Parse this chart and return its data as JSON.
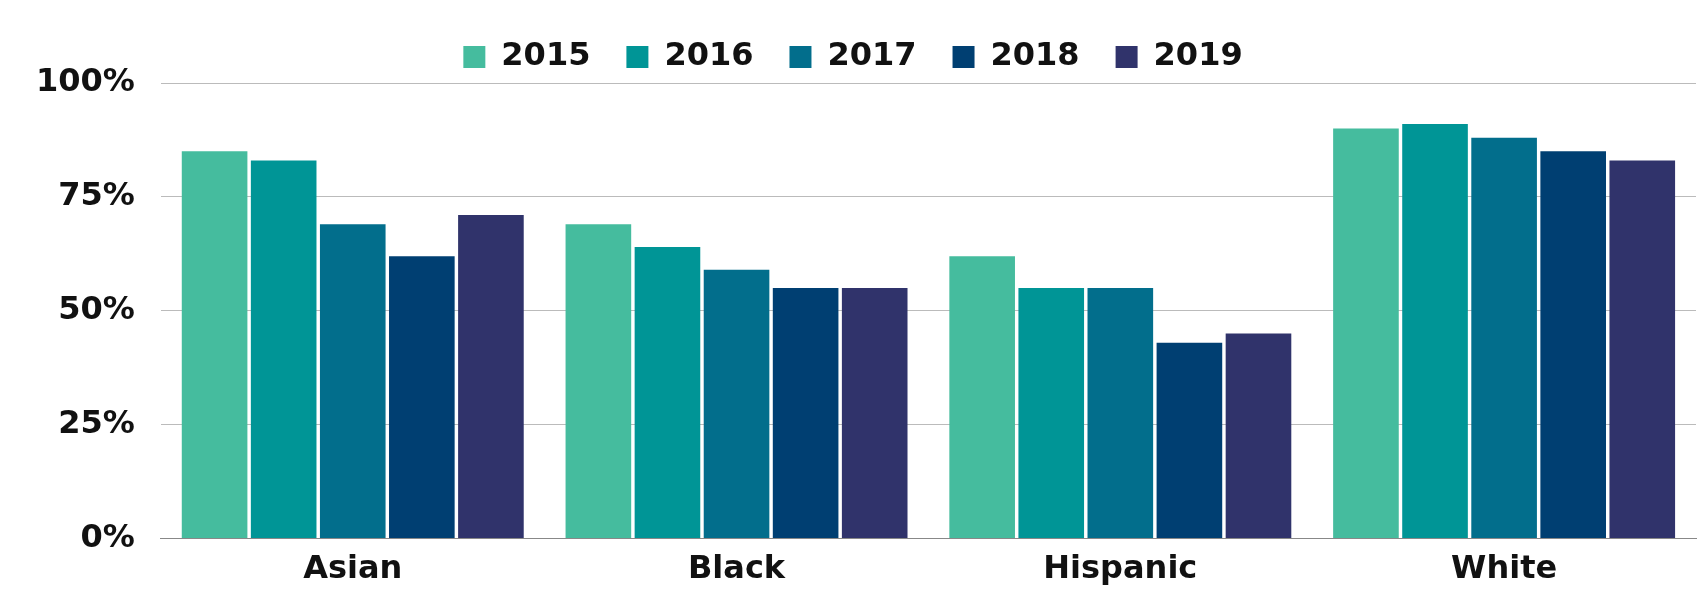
{
  "chart_data": {
    "type": "bar",
    "categories": [
      "Asian",
      "Black",
      "Hispanic",
      "White"
    ],
    "series": [
      {
        "name": "2015",
        "color": "#45bc9e",
        "values": [
          85,
          69,
          62,
          90
        ]
      },
      {
        "name": "2016",
        "color": "#009596",
        "values": [
          83,
          64,
          55,
          91
        ]
      },
      {
        "name": "2017",
        "color": "#026e8c",
        "values": [
          69,
          59,
          55,
          88
        ]
      },
      {
        "name": "2018",
        "color": "#003f72",
        "values": [
          62,
          55,
          43,
          85
        ]
      },
      {
        "name": "2019",
        "color": "#30336b",
        "values": [
          71,
          55,
          45,
          83
        ]
      }
    ],
    "ylim": [
      0,
      100
    ],
    "yticks": [
      {
        "value": 0,
        "label": "0%"
      },
      {
        "value": 25,
        "label": "25%"
      },
      {
        "value": 50,
        "label": "50%"
      },
      {
        "value": 75,
        "label": "75%"
      },
      {
        "value": 100,
        "label": "100%"
      }
    ],
    "grid": "y",
    "legend": "top"
  }
}
